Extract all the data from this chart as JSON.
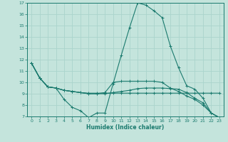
{
  "xlabel": "Humidex (Indice chaleur)",
  "bg_color": "#c4e4dc",
  "grid_color": "#aad4cc",
  "line_color": "#1a7a6e",
  "xlim": [
    -0.5,
    23.5
  ],
  "ylim": [
    7,
    17
  ],
  "xticks": [
    0,
    1,
    2,
    3,
    4,
    5,
    6,
    7,
    8,
    9,
    10,
    11,
    12,
    13,
    14,
    15,
    16,
    17,
    18,
    19,
    20,
    21,
    22,
    23
  ],
  "yticks": [
    7,
    8,
    9,
    10,
    11,
    12,
    13,
    14,
    15,
    16,
    17
  ],
  "series": [
    {
      "x": [
        0,
        1,
        2,
        3,
        4,
        5,
        6,
        7,
        8,
        9,
        10,
        11,
        12,
        13,
        14,
        15,
        16,
        17,
        18,
        19,
        20,
        21,
        22,
        23
      ],
      "y": [
        11.7,
        10.4,
        9.6,
        9.5,
        8.5,
        7.8,
        7.5,
        6.9,
        7.3,
        7.3,
        9.9,
        12.4,
        14.8,
        17.0,
        16.8,
        16.3,
        15.7,
        13.2,
        11.3,
        9.7,
        9.4,
        8.6,
        7.3,
        6.9
      ]
    },
    {
      "x": [
        0,
        1,
        2,
        3,
        4,
        5,
        6,
        7,
        8,
        9,
        10,
        11,
        12,
        13,
        14,
        15,
        16,
        17,
        18,
        19,
        20,
        21,
        22,
        23
      ],
      "y": [
        11.7,
        10.4,
        9.6,
        9.5,
        9.3,
        9.2,
        9.1,
        9.05,
        9.05,
        9.05,
        9.05,
        9.05,
        9.05,
        9.05,
        9.05,
        9.05,
        9.05,
        9.05,
        9.05,
        9.05,
        9.05,
        9.05,
        9.05,
        9.05
      ]
    },
    {
      "x": [
        0,
        1,
        2,
        3,
        4,
        5,
        6,
        7,
        8,
        9,
        10,
        11,
        12,
        13,
        14,
        15,
        16,
        17,
        18,
        19,
        20,
        21,
        22,
        23
      ],
      "y": [
        11.7,
        10.4,
        9.6,
        9.5,
        9.3,
        9.2,
        9.1,
        9.0,
        9.0,
        9.0,
        9.1,
        9.2,
        9.3,
        9.45,
        9.5,
        9.5,
        9.5,
        9.45,
        9.4,
        9.1,
        8.6,
        8.2,
        7.3,
        6.9
      ]
    },
    {
      "x": [
        0,
        1,
        2,
        3,
        4,
        5,
        6,
        7,
        8,
        9,
        10,
        11,
        12,
        13,
        14,
        15,
        16,
        17,
        18,
        19,
        20,
        21,
        22,
        23
      ],
      "y": [
        11.7,
        10.4,
        9.6,
        9.5,
        9.3,
        9.2,
        9.1,
        9.0,
        9.0,
        9.1,
        10.0,
        10.1,
        10.1,
        10.1,
        10.1,
        10.1,
        10.0,
        9.5,
        9.2,
        8.8,
        8.5,
        8.0,
        7.3,
        6.9
      ]
    }
  ]
}
